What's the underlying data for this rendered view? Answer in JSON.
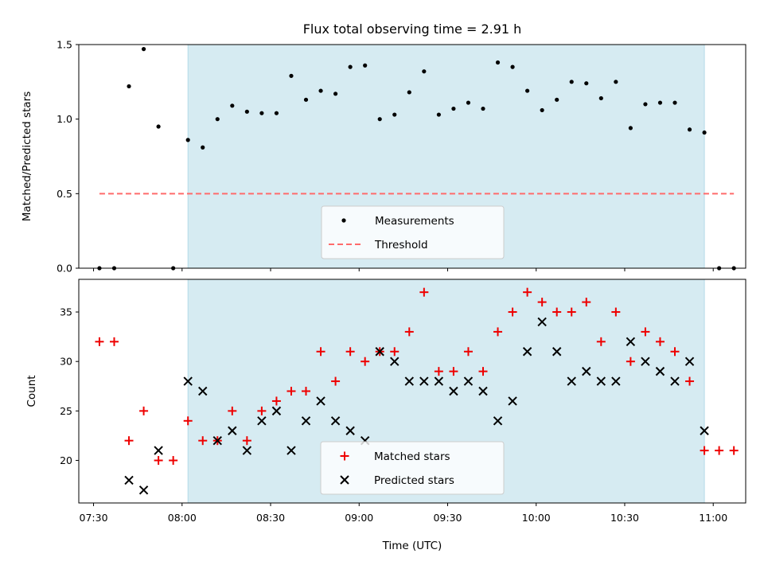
{
  "title": "Flux total observing time = 2.91 h",
  "colors": {
    "shade": "#add8e6",
    "measurement": "#000000",
    "threshold": "#ff6b6b",
    "matched": "#ee0000",
    "predicted": "#000000"
  },
  "chart_data": [
    {
      "type": "scatter",
      "ylabel": "Matched/Predicted stars",
      "ylim": [
        0,
        1.5
      ],
      "yticks": [
        0.0,
        0.5,
        1.0,
        1.5
      ],
      "ytick_labels": [
        "0.0",
        "0.5",
        "1.0",
        "1.5"
      ],
      "xlim": [
        "07:25",
        "11:11"
      ],
      "shaded_interval": [
        "08:02",
        "10:57"
      ],
      "legend": {
        "placement": "lower-center",
        "entries": [
          "Measurements",
          "Threshold"
        ]
      },
      "threshold": {
        "name": "Threshold",
        "value": 0.5,
        "x_range": [
          "07:32",
          "11:07"
        ]
      },
      "series": [
        {
          "name": "Measurements",
          "marker": "dot",
          "points": [
            [
              "07:32",
              0.0
            ],
            [
              "07:37",
              0.0
            ],
            [
              "07:42",
              1.22
            ],
            [
              "07:47",
              1.47
            ],
            [
              "07:52",
              0.95
            ],
            [
              "07:57",
              0.0
            ],
            [
              "08:02",
              0.86
            ],
            [
              "08:07",
              0.81
            ],
            [
              "08:12",
              1.0
            ],
            [
              "08:17",
              1.09
            ],
            [
              "08:22",
              1.05
            ],
            [
              "08:27",
              1.04
            ],
            [
              "08:32",
              1.04
            ],
            [
              "08:37",
              1.29
            ],
            [
              "08:42",
              1.13
            ],
            [
              "08:47",
              1.19
            ],
            [
              "08:52",
              1.17
            ],
            [
              "08:57",
              1.35
            ],
            [
              "09:02",
              1.36
            ],
            [
              "09:07",
              1.0
            ],
            [
              "09:12",
              1.03
            ],
            [
              "09:17",
              1.18
            ],
            [
              "09:22",
              1.32
            ],
            [
              "09:27",
              1.03
            ],
            [
              "09:32",
              1.07
            ],
            [
              "09:37",
              1.11
            ],
            [
              "09:42",
              1.07
            ],
            [
              "09:47",
              1.38
            ],
            [
              "09:52",
              1.35
            ],
            [
              "09:57",
              1.19
            ],
            [
              "10:02",
              1.06
            ],
            [
              "10:07",
              1.13
            ],
            [
              "10:12",
              1.25
            ],
            [
              "10:17",
              1.24
            ],
            [
              "10:22",
              1.14
            ],
            [
              "10:27",
              1.25
            ],
            [
              "10:32",
              0.94
            ],
            [
              "10:37",
              1.1
            ],
            [
              "10:42",
              1.11
            ],
            [
              "10:47",
              1.11
            ],
            [
              "10:52",
              0.93
            ],
            [
              "10:57",
              0.91
            ],
            [
              "11:02",
              0.0
            ],
            [
              "11:07",
              0.0
            ]
          ]
        }
      ]
    },
    {
      "type": "scatter",
      "xlabel": "Time (UTC)",
      "ylabel": "Count",
      "ylim": [
        15.7,
        38.3
      ],
      "yticks": [
        20,
        25,
        30,
        35
      ],
      "ytick_labels": [
        "20",
        "25",
        "30",
        "35"
      ],
      "xlim": [
        "07:25",
        "11:11"
      ],
      "xticks": [
        "07:30",
        "08:00",
        "08:30",
        "09:00",
        "09:30",
        "10:00",
        "10:30",
        "11:00"
      ],
      "shaded_interval": [
        "08:02",
        "10:57"
      ],
      "legend": {
        "placement": "lower-center",
        "entries": [
          "Matched stars",
          "Predicted stars"
        ]
      },
      "series": [
        {
          "name": "Matched stars",
          "marker": "plus",
          "points": [
            [
              "07:32",
              32
            ],
            [
              "07:37",
              32
            ],
            [
              "07:42",
              22
            ],
            [
              "07:47",
              25
            ],
            [
              "07:52",
              20
            ],
            [
              "07:57",
              20
            ],
            [
              "08:02",
              24
            ],
            [
              "08:07",
              22
            ],
            [
              "08:12",
              22
            ],
            [
              "08:17",
              25
            ],
            [
              "08:22",
              22
            ],
            [
              "08:27",
              25
            ],
            [
              "08:32",
              26
            ],
            [
              "08:37",
              27
            ],
            [
              "08:42",
              27
            ],
            [
              "08:47",
              31
            ],
            [
              "08:52",
              28
            ],
            [
              "08:57",
              31
            ],
            [
              "09:02",
              30
            ],
            [
              "09:07",
              31
            ],
            [
              "09:12",
              31
            ],
            [
              "09:17",
              33
            ],
            [
              "09:22",
              37
            ],
            [
              "09:27",
              29
            ],
            [
              "09:32",
              29
            ],
            [
              "09:37",
              31
            ],
            [
              "09:42",
              29
            ],
            [
              "09:47",
              33
            ],
            [
              "09:52",
              35
            ],
            [
              "09:57",
              37
            ],
            [
              "10:02",
              36
            ],
            [
              "10:07",
              35
            ],
            [
              "10:12",
              35
            ],
            [
              "10:17",
              36
            ],
            [
              "10:22",
              32
            ],
            [
              "10:27",
              35
            ],
            [
              "10:32",
              30
            ],
            [
              "10:37",
              33
            ],
            [
              "10:42",
              32
            ],
            [
              "10:47",
              31
            ],
            [
              "10:52",
              28
            ],
            [
              "10:57",
              21
            ],
            [
              "11:02",
              21
            ],
            [
              "11:07",
              21
            ]
          ]
        },
        {
          "name": "Predicted stars",
          "marker": "x",
          "points": [
            [
              "07:42",
              18
            ],
            [
              "07:47",
              17
            ],
            [
              "07:52",
              21
            ],
            [
              "08:02",
              28
            ],
            [
              "08:07",
              27
            ],
            [
              "08:12",
              22
            ],
            [
              "08:17",
              23
            ],
            [
              "08:22",
              21
            ],
            [
              "08:27",
              24
            ],
            [
              "08:32",
              25
            ],
            [
              "08:37",
              21
            ],
            [
              "08:42",
              24
            ],
            [
              "08:47",
              26
            ],
            [
              "08:52",
              24
            ],
            [
              "08:57",
              23
            ],
            [
              "09:02",
              22
            ],
            [
              "09:07",
              31
            ],
            [
              "09:12",
              30
            ],
            [
              "09:17",
              28
            ],
            [
              "09:22",
              28
            ],
            [
              "09:27",
              28
            ],
            [
              "09:32",
              27
            ],
            [
              "09:37",
              28
            ],
            [
              "09:42",
              27
            ],
            [
              "09:47",
              24
            ],
            [
              "09:52",
              26
            ],
            [
              "09:57",
              31
            ],
            [
              "10:02",
              34
            ],
            [
              "10:07",
              31
            ],
            [
              "10:12",
              28
            ],
            [
              "10:17",
              29
            ],
            [
              "10:22",
              28
            ],
            [
              "10:27",
              28
            ],
            [
              "10:32",
              32
            ],
            [
              "10:37",
              30
            ],
            [
              "10:42",
              29
            ],
            [
              "10:47",
              28
            ],
            [
              "10:52",
              30
            ],
            [
              "10:57",
              23
            ]
          ]
        }
      ]
    }
  ]
}
